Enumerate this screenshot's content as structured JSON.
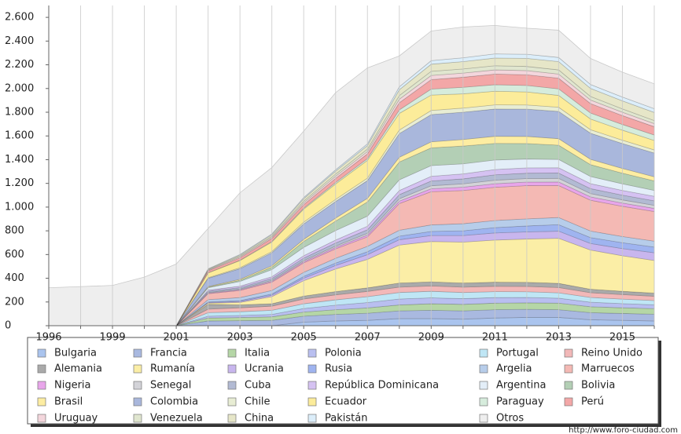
{
  "chart_data": {
    "type": "stacked-area",
    "categories": [
      "1996",
      null,
      "1999",
      null,
      "2001",
      null,
      "2003",
      null,
      "2005",
      null,
      "2007",
      null,
      "2009",
      null,
      "2011",
      null,
      "2013",
      null,
      "2015",
      null
    ],
    "ylim": [
      0,
      2700
    ],
    "yticks": [
      0,
      200,
      400,
      600,
      800,
      {
        "value": 1000,
        "label": "1.000"
      },
      {
        "value": 1200,
        "label": "1.200"
      },
      {
        "value": 1400,
        "label": "1.400"
      },
      {
        "value": 1600,
        "label": "1.600"
      },
      {
        "value": 1800,
        "label": "1.800"
      },
      {
        "value": 2000,
        "label": "2.000"
      },
      {
        "value": 2200,
        "label": "2.200"
      },
      {
        "value": 2400,
        "label": "2.400"
      },
      {
        "value": 2600,
        "label": "2.600"
      }
    ],
    "source": "http://www.foro-ciudad.com",
    "series": [
      {
        "name": "Bulgaria",
        "color": "#aac4ee",
        "values": [
          0,
          0,
          0,
          0,
          0,
          0,
          0,
          0,
          30,
          40,
          45,
          60,
          60,
          55,
          65,
          70,
          70,
          50,
          45,
          40
        ]
      },
      {
        "name": "Francia",
        "color": "#a9b9e0",
        "values": [
          0,
          0,
          0,
          0,
          0,
          40,
          42,
          45,
          50,
          55,
          60,
          65,
          70,
          70,
          70,
          68,
          65,
          60,
          58,
          57
        ]
      },
      {
        "name": "Italia",
        "color": "#b5d6a6",
        "values": [
          0,
          0,
          0,
          0,
          0,
          25,
          27,
          30,
          35,
          40,
          45,
          50,
          55,
          55,
          55,
          55,
          55,
          50,
          48,
          47
        ]
      },
      {
        "name": "Polonia",
        "color": "#b9bff0",
        "values": [
          0,
          0,
          0,
          0,
          0,
          15,
          17,
          20,
          30,
          38,
          45,
          50,
          50,
          48,
          47,
          45,
          42,
          38,
          35,
          32
        ]
      },
      {
        "name": "Portugal",
        "color": "#bfe6f5",
        "values": [
          0,
          0,
          0,
          0,
          0,
          30,
          32,
          35,
          40,
          45,
          50,
          55,
          55,
          52,
          50,
          48,
          45,
          40,
          38,
          36
        ]
      },
      {
        "name": "Reino Unido",
        "color": "#f2b8b8",
        "values": [
          0,
          0,
          0,
          0,
          0,
          30,
          33,
          35,
          40,
          42,
          44,
          45,
          45,
          45,
          45,
          45,
          45,
          40,
          38,
          36
        ]
      },
      {
        "name": "Alemania",
        "color": "#aaaaaa",
        "values": [
          0,
          0,
          0,
          0,
          0,
          40,
          25,
          20,
          25,
          28,
          30,
          35,
          35,
          35,
          35,
          35,
          35,
          30,
          28,
          27
        ]
      },
      {
        "name": "Rumanía",
        "color": "#fbeea6",
        "values": [
          0,
          0,
          0,
          0,
          0,
          10,
          20,
          60,
          130,
          190,
          240,
          320,
          340,
          345,
          355,
          365,
          380,
          330,
          300,
          275
        ]
      },
      {
        "name": "Ucrania",
        "color": "#c8b6ee",
        "values": [
          0,
          0,
          0,
          0,
          0,
          5,
          8,
          12,
          20,
          30,
          40,
          45,
          50,
          55,
          60,
          60,
          60,
          55,
          60,
          65
        ]
      },
      {
        "name": "Rusia",
        "color": "#9fb4f0",
        "values": [
          0,
          0,
          0,
          0,
          0,
          5,
          8,
          10,
          15,
          20,
          25,
          30,
          35,
          40,
          45,
          50,
          55,
          50,
          50,
          48
        ]
      },
      {
        "name": "Argelia",
        "color": "#b7cdea",
        "values": [
          0,
          0,
          0,
          0,
          0,
          20,
          25,
          30,
          35,
          40,
          45,
          50,
          55,
          60,
          60,
          60,
          60,
          55,
          52,
          50
        ]
      },
      {
        "name": "Marruecos",
        "color": "#f4b9b4",
        "values": [
          0,
          0,
          0,
          0,
          0,
          50,
          60,
          70,
          80,
          80,
          80,
          225,
          280,
          280,
          280,
          280,
          270,
          260,
          255,
          250
        ]
      },
      {
        "name": "Nigeria",
        "color": "#e8a6ea",
        "values": [
          0,
          0,
          0,
          0,
          0,
          5,
          6,
          8,
          10,
          12,
          15,
          20,
          25,
          28,
          30,
          30,
          30,
          28,
          27,
          26
        ]
      },
      {
        "name": "Senegal",
        "color": "#d3d3d8",
        "values": [
          0,
          0,
          0,
          0,
          0,
          5,
          6,
          8,
          10,
          12,
          15,
          20,
          25,
          28,
          30,
          30,
          30,
          28,
          27,
          26
        ]
      },
      {
        "name": "Cuba",
        "color": "#b2bad3",
        "values": [
          0,
          0,
          0,
          0,
          0,
          10,
          12,
          15,
          20,
          25,
          30,
          35,
          40,
          42,
          45,
          45,
          45,
          42,
          40,
          38
        ]
      },
      {
        "name": "República Dominicana",
        "color": "#d5c2f2",
        "values": [
          0,
          0,
          0,
          0,
          0,
          10,
          12,
          15,
          20,
          25,
          30,
          35,
          40,
          42,
          45,
          45,
          45,
          42,
          40,
          38
        ]
      },
      {
        "name": "Argentina",
        "color": "#e3eef8",
        "values": [
          0,
          0,
          0,
          0,
          0,
          20,
          40,
          60,
          70,
          80,
          85,
          90,
          90,
          85,
          80,
          75,
          70,
          60,
          55,
          50
        ]
      },
      {
        "name": "Bolivia",
        "color": "#b3cfb5",
        "values": [
          0,
          0,
          0,
          0,
          0,
          5,
          10,
          20,
          50,
          80,
          120,
          150,
          150,
          150,
          140,
          130,
          120,
          100,
          90,
          80
        ]
      },
      {
        "name": "Brasil",
        "color": "#fdeda2",
        "values": [
          0,
          0,
          0,
          0,
          0,
          5,
          8,
          12,
          18,
          25,
          30,
          40,
          50,
          55,
          60,
          60,
          55,
          45,
          40,
          35
        ]
      },
      {
        "name": "Colombia",
        "color": "#a9b7dc",
        "values": [
          0,
          0,
          0,
          0,
          0,
          70,
          90,
          110,
          130,
          140,
          150,
          200,
          230,
          230,
          230,
          230,
          230,
          220,
          210,
          200
        ]
      },
      {
        "name": "Chile",
        "color": "#e8edd4",
        "values": [
          0,
          0,
          0,
          0,
          0,
          5,
          8,
          10,
          15,
          18,
          20,
          30,
          35,
          35,
          35,
          35,
          35,
          30,
          28,
          26
        ]
      },
      {
        "name": "Ecuador",
        "color": "#fcec9a",
        "values": [
          0,
          0,
          0,
          0,
          0,
          40,
          60,
          80,
          110,
          130,
          150,
          140,
          130,
          120,
          115,
          110,
          100,
          90,
          85,
          80
        ]
      },
      {
        "name": "Paraguay",
        "color": "#d6ecdc",
        "values": [
          0,
          0,
          0,
          0,
          0,
          2,
          3,
          5,
          8,
          12,
          15,
          30,
          50,
          55,
          55,
          55,
          55,
          50,
          48,
          46
        ]
      },
      {
        "name": "Perú",
        "color": "#f3a7a7",
        "values": [
          0,
          0,
          0,
          0,
          0,
          15,
          20,
          25,
          30,
          35,
          40,
          60,
          80,
          85,
          90,
          90,
          90,
          80,
          75,
          70
        ]
      },
      {
        "name": "Uruguay",
        "color": "#f3d6dc",
        "values": [
          0,
          0,
          0,
          0,
          0,
          5,
          8,
          10,
          15,
          18,
          20,
          30,
          35,
          35,
          35,
          35,
          35,
          30,
          28,
          26
        ]
      },
      {
        "name": "Venezuela",
        "color": "#e0e6cf",
        "values": [
          0,
          0,
          0,
          0,
          0,
          5,
          8,
          10,
          15,
          18,
          20,
          30,
          35,
          35,
          35,
          35,
          35,
          30,
          28,
          26
        ]
      },
      {
        "name": "China",
        "color": "#e6e6c8",
        "values": [
          0,
          0,
          0,
          0,
          0,
          5,
          8,
          12,
          20,
          25,
          30,
          50,
          60,
          62,
          65,
          68,
          70,
          68,
          68,
          68
        ]
      },
      {
        "name": "Pakistán",
        "color": "#dceefa",
        "values": [
          0,
          0,
          0,
          0,
          0,
          3,
          5,
          7,
          10,
          12,
          15,
          25,
          30,
          32,
          35,
          35,
          35,
          33,
          32,
          32
        ]
      },
      {
        "name": "Otros",
        "color": "#eeeeee",
        "values": [
          320,
          330,
          340,
          410,
          520,
          340,
          520,
          560,
          560,
          650,
          640,
          260,
          250,
          260,
          240,
          220,
          230,
          220,
          210,
          210
        ]
      }
    ]
  }
}
